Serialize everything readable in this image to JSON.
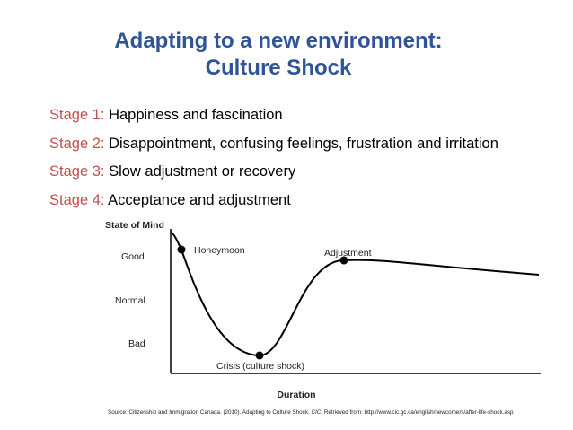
{
  "title": [
    "Adapting to a new environment:",
    "Culture Shock"
  ],
  "stages": [
    {
      "label": "Stage 1:",
      "text": "Happiness and fascination"
    },
    {
      "label": "Stage 2:",
      "text": "Disappointment, confusing feelings, frustration and irritation"
    },
    {
      "label": "Stage 3:",
      "text": "Slow adjustment or recovery"
    },
    {
      "label": "Stage 4:",
      "text": "Acceptance and adjustment"
    }
  ],
  "diagram": {
    "y_axis_title": "State of Mind",
    "y_levels": [
      "Good",
      "Normal",
      "Bad"
    ],
    "x_axis_title": "Duration",
    "points": [
      "Honeymoon",
      "Crisis (culture shock)",
      "Adjustment"
    ]
  },
  "source": {
    "before": "Source: Citizenship and Immigration Canada. (2010). Adapting to Culture Shock. ",
    "italic": "CIC.",
    "after": " Retrieved from: http://www.cic.gc.ca/english/newcomers/after-life-shock.asp"
  }
}
